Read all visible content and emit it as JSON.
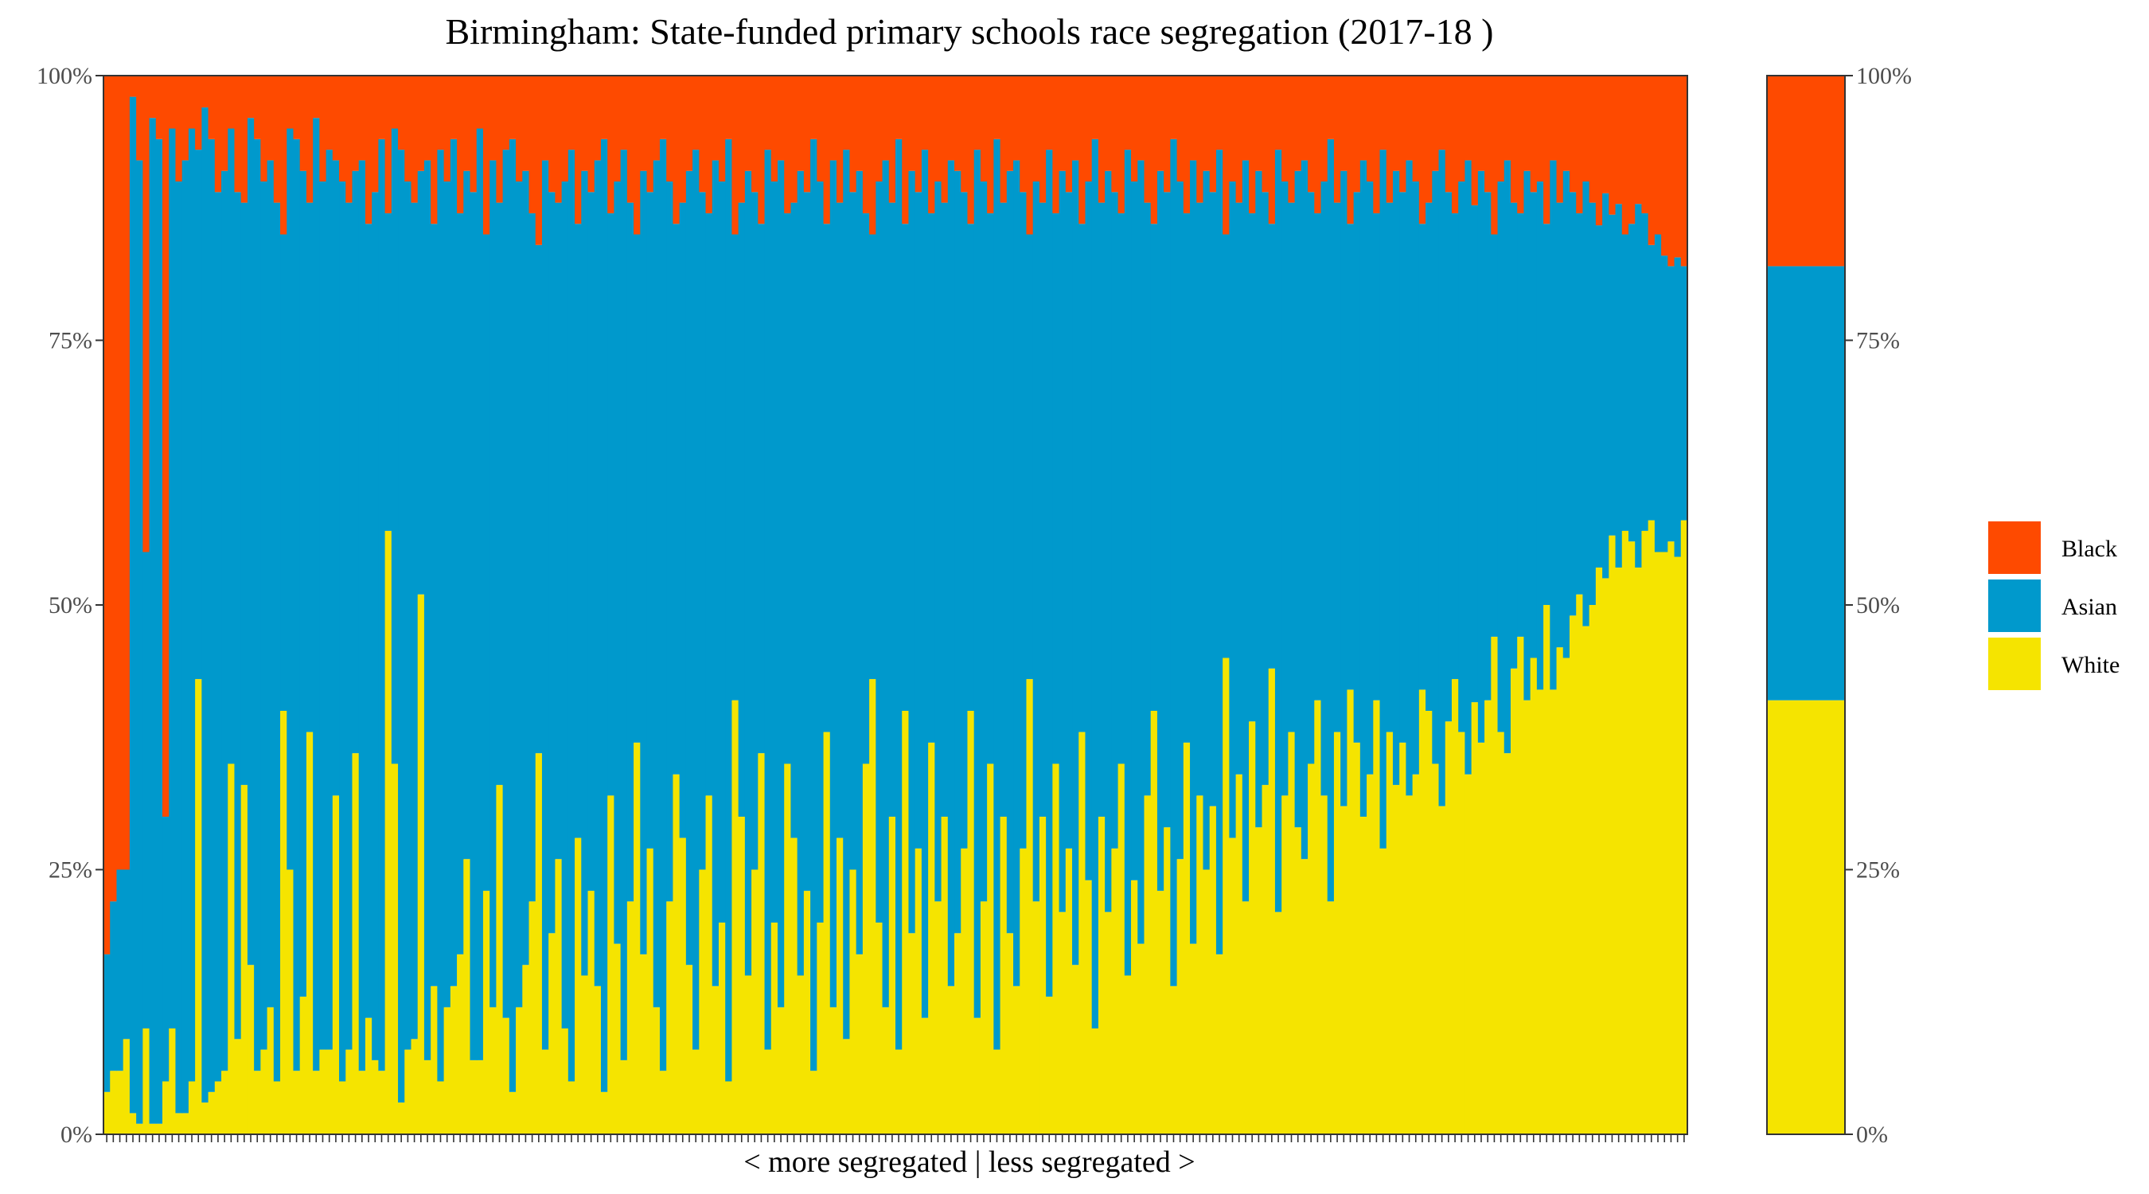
{
  "chart_data": {
    "type": "bar",
    "stacked": true,
    "title": "Birmingham: State-funded primary schools race segregation (2017-18 )",
    "xlabel": "< more segregated | less segregated >",
    "ylabel": "",
    "ylim": [
      0,
      1
    ],
    "y_ticks": [
      "0%",
      "25%",
      "50%",
      "75%",
      "100%"
    ],
    "y_tick_values": [
      0,
      0.25,
      0.5,
      0.75,
      1
    ],
    "legend_position": "right",
    "colors": {
      "Black": "#fe4a00",
      "Asian": "#0099cc",
      "White": "#f5e400"
    },
    "series": [
      {
        "name": "Black",
        "values": [
          0.83,
          0.78,
          0.75,
          0.75,
          0.02,
          0.08,
          0.45,
          0.04,
          0.06,
          0.7,
          0.05,
          0.1,
          0.08,
          0.05,
          0.07,
          0.03,
          0.06,
          0.11,
          0.09,
          0.05,
          0.11,
          0.12,
          0.04,
          0.06,
          0.1,
          0.08,
          0.12,
          0.15,
          0.05,
          0.06,
          0.09,
          0.12,
          0.04,
          0.1,
          0.07,
          0.08,
          0.1,
          0.12,
          0.09,
          0.08,
          0.14,
          0.11,
          0.06,
          0.13,
          0.05,
          0.07,
          0.1,
          0.12,
          0.09,
          0.08,
          0.14,
          0.07,
          0.1,
          0.06,
          0.13,
          0.09,
          0.11,
          0.05,
          0.15,
          0.08,
          0.12,
          0.07,
          0.06,
          0.1,
          0.09,
          0.13,
          0.16,
          0.08,
          0.11,
          0.12,
          0.1,
          0.07,
          0.14,
          0.09,
          0.11,
          0.08,
          0.06,
          0.13,
          0.1,
          0.07,
          0.12,
          0.15,
          0.09,
          0.11,
          0.08,
          0.06,
          0.1,
          0.14,
          0.12,
          0.09,
          0.07,
          0.11,
          0.13,
          0.08,
          0.1,
          0.06,
          0.15,
          0.12,
          0.09,
          0.11,
          0.14,
          0.07,
          0.1,
          0.08,
          0.13,
          0.12,
          0.09,
          0.11,
          0.06,
          0.1,
          0.14,
          0.08,
          0.12,
          0.07,
          0.11,
          0.09,
          0.13,
          0.15,
          0.1,
          0.08,
          0.12,
          0.06,
          0.14,
          0.09,
          0.11,
          0.07,
          0.13,
          0.1,
          0.12,
          0.08,
          0.09,
          0.11,
          0.14,
          0.07,
          0.1,
          0.13,
          0.06,
          0.12,
          0.09,
          0.08,
          0.11,
          0.15,
          0.1,
          0.12,
          0.07,
          0.13,
          0.09,
          0.11,
          0.08,
          0.14,
          0.1,
          0.06,
          0.12,
          0.09,
          0.11,
          0.13,
          0.07,
          0.1,
          0.08,
          0.12,
          0.14,
          0.09,
          0.11,
          0.06,
          0.1,
          0.13,
          0.08,
          0.12,
          0.09,
          0.11,
          0.07,
          0.15,
          0.1,
          0.12,
          0.08,
          0.13,
          0.09,
          0.11,
          0.14,
          0.07,
          0.1,
          0.12,
          0.09,
          0.08,
          0.11,
          0.13,
          0.1,
          0.06,
          0.12,
          0.09,
          0.14,
          0.11,
          0.08,
          0.1,
          0.13,
          0.07,
          0.12,
          0.09,
          0.11,
          0.08,
          0.1,
          0.14,
          0.12,
          0.09,
          0.07,
          0.11,
          0.13,
          0.1,
          0.08,
          0.12,
          0.09,
          0.11,
          0.15,
          0.1,
          0.08,
          0.12,
          0.13,
          0.09,
          0.11,
          0.1,
          0.14,
          0.08,
          0.12,
          0.09,
          0.11,
          0.13,
          0.1,
          0.12,
          0.14,
          0.11,
          0.13,
          0.12,
          0.15,
          0.14,
          0.12,
          0.13,
          0.16,
          0.15,
          0.17,
          0.18,
          0.17,
          0.18
        ]
      },
      {
        "name": "Asian",
        "values": [
          0.13,
          0.16,
          0.19,
          0.16,
          0.96,
          0.91,
          0.45,
          0.95,
          0.93,
          0.25,
          0.85,
          0.88,
          0.9,
          0.9,
          0.5,
          0.94,
          0.9,
          0.84,
          0.85,
          0.6,
          0.8,
          0.55,
          0.8,
          0.88,
          0.82,
          0.8,
          0.83,
          0.45,
          0.7,
          0.88,
          0.78,
          0.5,
          0.9,
          0.82,
          0.85,
          0.6,
          0.85,
          0.8,
          0.55,
          0.86,
          0.75,
          0.82,
          0.88,
          0.3,
          0.6,
          0.9,
          0.82,
          0.79,
          0.4,
          0.85,
          0.72,
          0.88,
          0.78,
          0.8,
          0.7,
          0.65,
          0.82,
          0.88,
          0.62,
          0.8,
          0.55,
          0.82,
          0.9,
          0.78,
          0.75,
          0.65,
          0.48,
          0.84,
          0.7,
          0.62,
          0.8,
          0.88,
          0.58,
          0.76,
          0.66,
          0.78,
          0.9,
          0.55,
          0.72,
          0.86,
          0.66,
          0.48,
          0.74,
          0.62,
          0.8,
          0.88,
          0.68,
          0.52,
          0.6,
          0.75,
          0.85,
          0.64,
          0.55,
          0.78,
          0.7,
          0.89,
          0.44,
          0.58,
          0.76,
          0.64,
          0.5,
          0.85,
          0.7,
          0.8,
          0.52,
          0.6,
          0.76,
          0.66,
          0.88,
          0.7,
          0.48,
          0.8,
          0.6,
          0.84,
          0.64,
          0.74,
          0.52,
          0.42,
          0.7,
          0.8,
          0.58,
          0.86,
          0.46,
          0.72,
          0.62,
          0.82,
          0.5,
          0.68,
          0.58,
          0.78,
          0.72,
          0.62,
          0.46,
          0.82,
          0.68,
          0.52,
          0.86,
          0.58,
          0.72,
          0.78,
          0.62,
          0.42,
          0.68,
          0.58,
          0.8,
          0.52,
          0.7,
          0.62,
          0.76,
          0.48,
          0.66,
          0.84,
          0.58,
          0.7,
          0.62,
          0.52,
          0.78,
          0.66,
          0.74,
          0.56,
          0.46,
          0.68,
          0.6,
          0.8,
          0.64,
          0.5,
          0.74,
          0.56,
          0.66,
          0.58,
          0.76,
          0.4,
          0.62,
          0.54,
          0.7,
          0.48,
          0.62,
          0.56,
          0.42,
          0.72,
          0.58,
          0.5,
          0.62,
          0.66,
          0.54,
          0.46,
          0.58,
          0.72,
          0.5,
          0.6,
          0.44,
          0.52,
          0.62,
          0.56,
          0.46,
          0.66,
          0.5,
          0.58,
          0.52,
          0.6,
          0.56,
          0.44,
          0.48,
          0.56,
          0.62,
          0.5,
          0.44,
          0.52,
          0.58,
          0.46,
          0.54,
          0.48,
          0.38,
          0.52,
          0.56,
          0.44,
          0.4,
          0.5,
          0.44,
          0.48,
          0.36,
          0.5,
          0.42,
          0.46,
          0.4,
          0.36,
          0.42,
          0.38,
          0.32,
          0.36,
          0.3,
          0.34,
          0.28,
          0.3,
          0.34,
          0.3,
          0.26,
          0.3,
          0.28,
          0.26,
          0.28,
          0.24
        ]
      },
      {
        "name": "White",
        "values": [
          0.04,
          0.06,
          0.06,
          0.09,
          0.02,
          0.01,
          0.1,
          0.01,
          0.01,
          0.05,
          0.1,
          0.02,
          0.02,
          0.05,
          0.43,
          0.03,
          0.04,
          0.05,
          0.06,
          0.35,
          0.09,
          0.33,
          0.16,
          0.06,
          0.08,
          0.12,
          0.05,
          0.4,
          0.25,
          0.06,
          0.13,
          0.38,
          0.06,
          0.08,
          0.08,
          0.32,
          0.05,
          0.08,
          0.36,
          0.06,
          0.11,
          0.07,
          0.06,
          0.57,
          0.35,
          0.03,
          0.08,
          0.09,
          0.51,
          0.07,
          0.14,
          0.05,
          0.12,
          0.14,
          0.17,
          0.26,
          0.07,
          0.07,
          0.23,
          0.12,
          0.33,
          0.11,
          0.04,
          0.12,
          0.16,
          0.22,
          0.36,
          0.08,
          0.19,
          0.26,
          0.1,
          0.05,
          0.28,
          0.15,
          0.23,
          0.14,
          0.04,
          0.32,
          0.18,
          0.07,
          0.22,
          0.37,
          0.17,
          0.27,
          0.12,
          0.06,
          0.22,
          0.34,
          0.28,
          0.16,
          0.08,
          0.25,
          0.32,
          0.14,
          0.2,
          0.05,
          0.41,
          0.3,
          0.15,
          0.25,
          0.36,
          0.08,
          0.2,
          0.12,
          0.35,
          0.28,
          0.15,
          0.23,
          0.06,
          0.2,
          0.38,
          0.12,
          0.28,
          0.09,
          0.25,
          0.17,
          0.35,
          0.43,
          0.2,
          0.12,
          0.3,
          0.08,
          0.4,
          0.19,
          0.27,
          0.11,
          0.37,
          0.22,
          0.3,
          0.14,
          0.19,
          0.27,
          0.4,
          0.11,
          0.22,
          0.35,
          0.08,
          0.3,
          0.19,
          0.14,
          0.27,
          0.43,
          0.22,
          0.3,
          0.13,
          0.35,
          0.21,
          0.27,
          0.16,
          0.38,
          0.24,
          0.1,
          0.3,
          0.21,
          0.27,
          0.35,
          0.15,
          0.24,
          0.18,
          0.32,
          0.4,
          0.23,
          0.29,
          0.14,
          0.26,
          0.37,
          0.18,
          0.32,
          0.25,
          0.31,
          0.17,
          0.45,
          0.28,
          0.34,
          0.22,
          0.39,
          0.29,
          0.33,
          0.44,
          0.21,
          0.32,
          0.38,
          0.29,
          0.26,
          0.35,
          0.41,
          0.32,
          0.22,
          0.38,
          0.31,
          0.42,
          0.37,
          0.3,
          0.34,
          0.41,
          0.27,
          0.38,
          0.33,
          0.37,
          0.32,
          0.34,
          0.42,
          0.4,
          0.35,
          0.31,
          0.39,
          0.43,
          0.38,
          0.34,
          0.4,
          0.37,
          0.41,
          0.47,
          0.38,
          0.36,
          0.44,
          0.47,
          0.41,
          0.45,
          0.42,
          0.5,
          0.42,
          0.46,
          0.45,
          0.49,
          0.51,
          0.48,
          0.5,
          0.53,
          0.52,
          0.56,
          0.53,
          0.57,
          0.56,
          0.53,
          0.57,
          0.58,
          0.55,
          0.55,
          0.56,
          0.54,
          0.58
        ]
      }
    ],
    "summary_bar": {
      "Black": 0.18,
      "Asian": 0.41,
      "White": 0.41
    }
  }
}
